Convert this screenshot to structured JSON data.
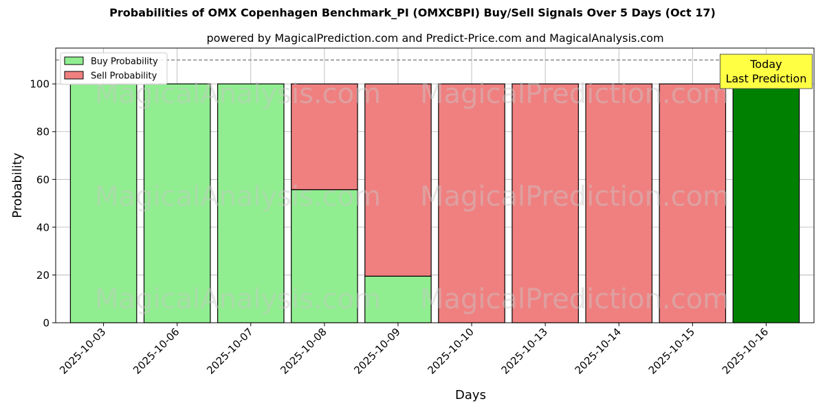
{
  "chart_data": {
    "type": "bar",
    "stacked": true,
    "title": "Probabilities of OMX Copenhagen Benchmark_PI (OMXCBPI) Buy/Sell Signals Over 5 Days (Oct 17)",
    "subtitle": "powered by MagicalPrediction.com and Predict-Price.com and MagicalAnalysis.com",
    "xlabel": "Days",
    "ylabel": "Probability",
    "ylim": [
      0,
      115
    ],
    "yticks": [
      0,
      20,
      40,
      60,
      80,
      100
    ],
    "categories": [
      "2025-10-03",
      "2025-10-06",
      "2025-10-07",
      "2025-10-08",
      "2025-10-09",
      "2025-10-10",
      "2025-10-13",
      "2025-10-14",
      "2025-10-15",
      "2025-10-16"
    ],
    "series": [
      {
        "name": "Buy Probability",
        "color": "#90ee90",
        "values": [
          100,
          100,
          100,
          55.7,
          19.5,
          0,
          0,
          0,
          0,
          100
        ]
      },
      {
        "name": "Sell Probability",
        "color": "#f08080",
        "values": [
          0,
          0,
          0,
          44.3,
          80.5,
          100,
          100,
          100,
          100,
          0
        ]
      }
    ],
    "highlight": {
      "index": 9,
      "color": "#008000",
      "label_lines": [
        "Today",
        "Last Prediction"
      ],
      "box_color": "#ffff44"
    },
    "reference_line": {
      "y": 110,
      "style": "dashed"
    },
    "grid": true,
    "legend_position": "top-left",
    "watermarks": [
      "MagicalAnalysis.com",
      "MagicalPrediction.com"
    ]
  }
}
